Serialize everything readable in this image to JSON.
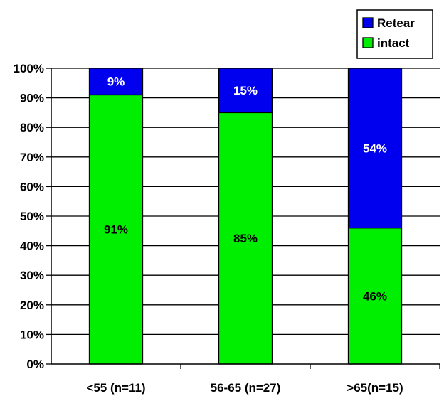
{
  "chart_data": {
    "type": "bar",
    "stacked": true,
    "categories": [
      "<55 (n=11)",
      "56-65 (n=27)",
      ">65(n=15)"
    ],
    "series": [
      {
        "name": "intact",
        "values": [
          91,
          85,
          46
        ],
        "color": "#00ee00",
        "label_color": "#000000",
        "labels": [
          "91%",
          "85%",
          "46%"
        ]
      },
      {
        "name": "Retear",
        "values": [
          9,
          15,
          54
        ],
        "color": "#0000ee",
        "label_color": "#ffffff",
        "labels": [
          "9%",
          "15%",
          "54%"
        ]
      }
    ],
    "legend": {
      "position": "top-right",
      "entries": [
        {
          "name": "Retear",
          "color": "#0000ee"
        },
        {
          "name": "intact",
          "color": "#00ee00"
        }
      ]
    },
    "y_ticks": [
      "0%",
      "10%",
      "20%",
      "30%",
      "40%",
      "50%",
      "60%",
      "70%",
      "80%",
      "90%",
      "100%"
    ],
    "ylim": [
      0,
      100
    ],
    "grid": true,
    "title": "",
    "xlabel": "",
    "ylabel": ""
  }
}
